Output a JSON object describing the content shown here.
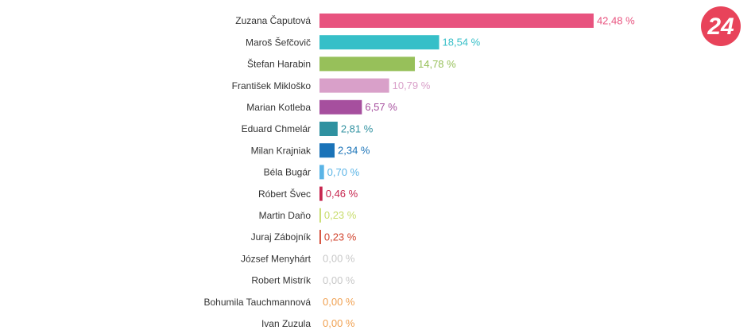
{
  "chart_data": {
    "type": "bar",
    "orientation": "horizontal",
    "categories": [
      "Zuzana Čaputová",
      "Maroš Šefčovič",
      "Štefan Harabin",
      "František Mikloško",
      "Marian Kotleba",
      "Eduard Chmelár",
      "Milan Krajniak",
      "Béla Bugár",
      "Róbert Švec",
      "Martin Daňo",
      "Juraj Zábojník",
      "József Menyhárt",
      "Robert Mistrík",
      "Bohumila Tauchmannová",
      "Ivan Zuzula"
    ],
    "values": [
      42.48,
      18.54,
      14.78,
      10.79,
      6.57,
      2.81,
      2.34,
      0.7,
      0.46,
      0.23,
      0.23,
      0.0,
      0.0,
      0.0,
      0.0
    ],
    "value_labels": [
      "42,48 %",
      "18,54 %",
      "14,78 %",
      "10,79 %",
      "6,57 %",
      "2,81 %",
      "2,34 %",
      "0,70 %",
      "0,46 %",
      "0,23 %",
      "0,23 %",
      "0,00 %",
      "0,00 %",
      "0,00 %",
      "0,00 %"
    ],
    "colors": [
      "#e8537f",
      "#36bfc8",
      "#97c05a",
      "#d9a0c9",
      "#a64f9e",
      "#2f91a0",
      "#1a73b8",
      "#5ab4e6",
      "#c7264f",
      "#c7dc6a",
      "#d2452f",
      "#c8c8c8",
      "#c8c8c8",
      "#f0a050",
      "#f0a050"
    ]
  },
  "logo": "24"
}
